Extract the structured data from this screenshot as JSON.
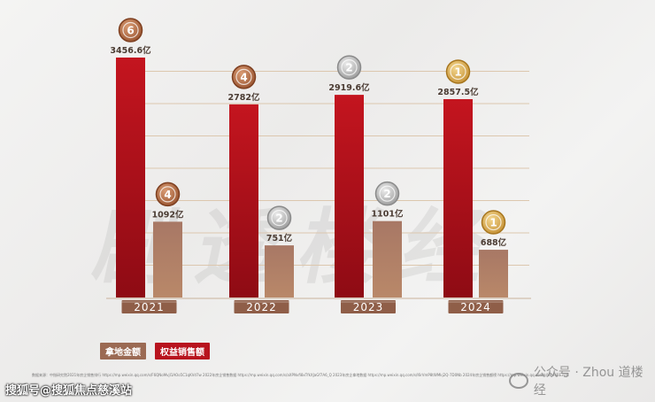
{
  "chart_data": {
    "type": "bar",
    "categories": [
      "2021",
      "2022",
      "2023",
      "2024"
    ],
    "series": [
      {
        "name": "权益销售额",
        "values": [
          3456.6,
          2782,
          2919.6,
          2857.5
        ],
        "labels": [
          "3456.6亿",
          "2782亿",
          "2919.6亿",
          "2857.5亿"
        ],
        "ranks": [
          "6",
          "4",
          "2",
          "1"
        ],
        "color": "#b8141e"
      },
      {
        "name": "拿地金额",
        "values": [
          1092,
          751,
          1101,
          688
        ],
        "labels": [
          "1092亿",
          "751亿",
          "1101亿",
          "688亿"
        ],
        "ranks": [
          "4",
          "2",
          "2",
          "1"
        ],
        "color": "#a2705a"
      }
    ],
    "ylim": [
      0,
      3600
    ],
    "grid": true
  },
  "colors": {
    "bronze": "#b06a43",
    "silver": "#b5b5b5",
    "gold": "#d8aa52",
    "gridline": "#dcc7ae",
    "year_band": "#8f5e48"
  },
  "legend": {
    "land": "拿地金额",
    "sales": "权益销售额"
  },
  "watermark_big": "剧透楼经",
  "source_text": "数据来源：中指研究院2021年房企销售排行 https://mp.weixin.qq.com/s/F6QNoMvjI1AOo5C1qKVd7w 2022年房企销售数据 https://mp.weixin.qq.com/s/aXPNvfi8xTfkXJaGf7A6_Q 2023年房企拿地数据 https://mp.weixin.qq.com/s/I6rVmP8tWMkj2Q-7D0Nb 2024年房企销售额榜 https://mp.weixin.qq.com/s/WpHjBE3Lf4",
  "footer_left": "搜狐号@搜狐焦点慈溪站",
  "footer_right": "公众号 · Zhou 道楼经"
}
